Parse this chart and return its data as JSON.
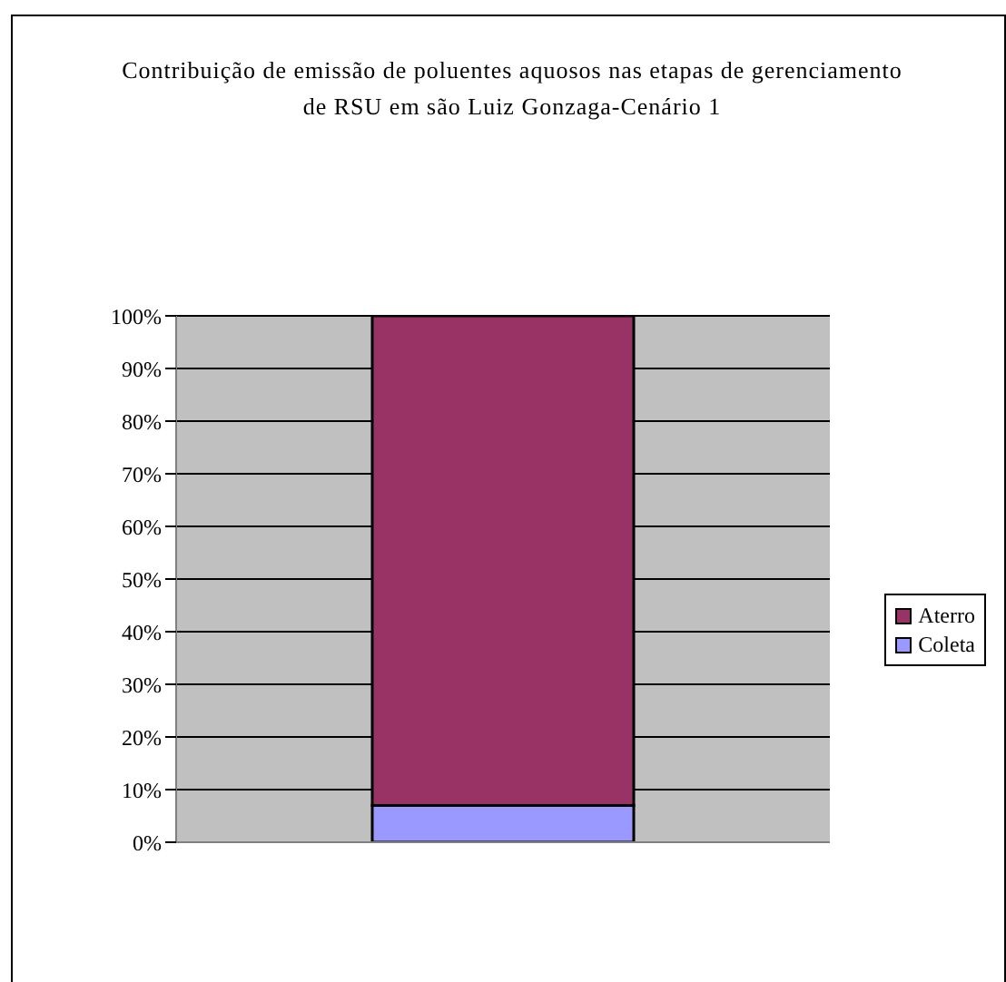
{
  "chart_data": {
    "type": "bar",
    "title": "Contribuição de emissão de poluentes aquosos nas etapas de gerenciamento de RSU em são Luiz Gonzaga-Cenário 1",
    "categories": [
      null
    ],
    "stacked": true,
    "series": [
      {
        "name": "Coleta",
        "color": "#9999ff",
        "values": [
          7
        ]
      },
      {
        "name": "Aterro",
        "color": "#993366",
        "values": [
          93
        ]
      }
    ],
    "ylim": [
      0,
      100
    ],
    "yticks": [
      {
        "value": 0,
        "label": "0%"
      },
      {
        "value": 10,
        "label": "10%"
      },
      {
        "value": 20,
        "label": "20%"
      },
      {
        "value": 30,
        "label": "30%"
      },
      {
        "value": 40,
        "label": "40%"
      },
      {
        "value": 50,
        "label": "50%"
      },
      {
        "value": 60,
        "label": "60%"
      },
      {
        "value": 70,
        "label": "70%"
      },
      {
        "value": 80,
        "label": "80%"
      },
      {
        "value": 90,
        "label": "90%"
      },
      {
        "value": 100,
        "label": "100%"
      }
    ],
    "grid": "y",
    "legend": "right"
  }
}
